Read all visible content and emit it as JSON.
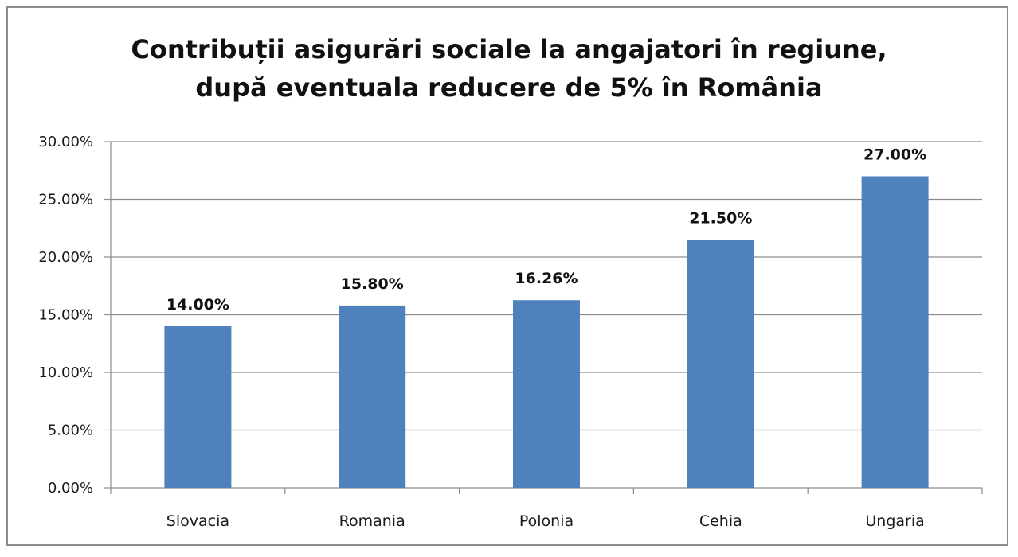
{
  "chart_data": {
    "type": "bar",
    "title_lines": [
      "Contribuții asigurări sociale la angajatori în regiune,",
      "după eventuala reducere de 5% în România"
    ],
    "categories": [
      "Slovacia",
      "Romania",
      "Polonia",
      "Cehia",
      "Ungaria"
    ],
    "values": [
      14.0,
      15.8,
      16.26,
      21.5,
      27.0
    ],
    "data_labels": [
      "14.00%",
      "15.80%",
      "16.26%",
      "21.50%",
      "27.00%"
    ],
    "y_ticks": [
      0,
      5,
      10,
      15,
      20,
      25,
      30
    ],
    "y_tick_labels": [
      "0.00%",
      "5.00%",
      "10.00%",
      "15.00%",
      "20.00%",
      "25.00%",
      "30.00%"
    ],
    "ylim": [
      0,
      30
    ],
    "xlabel": "",
    "ylabel": "",
    "grid": true,
    "legend": "none",
    "bar_color": "#4f81bd",
    "grid_color": "#8c8c8c"
  }
}
